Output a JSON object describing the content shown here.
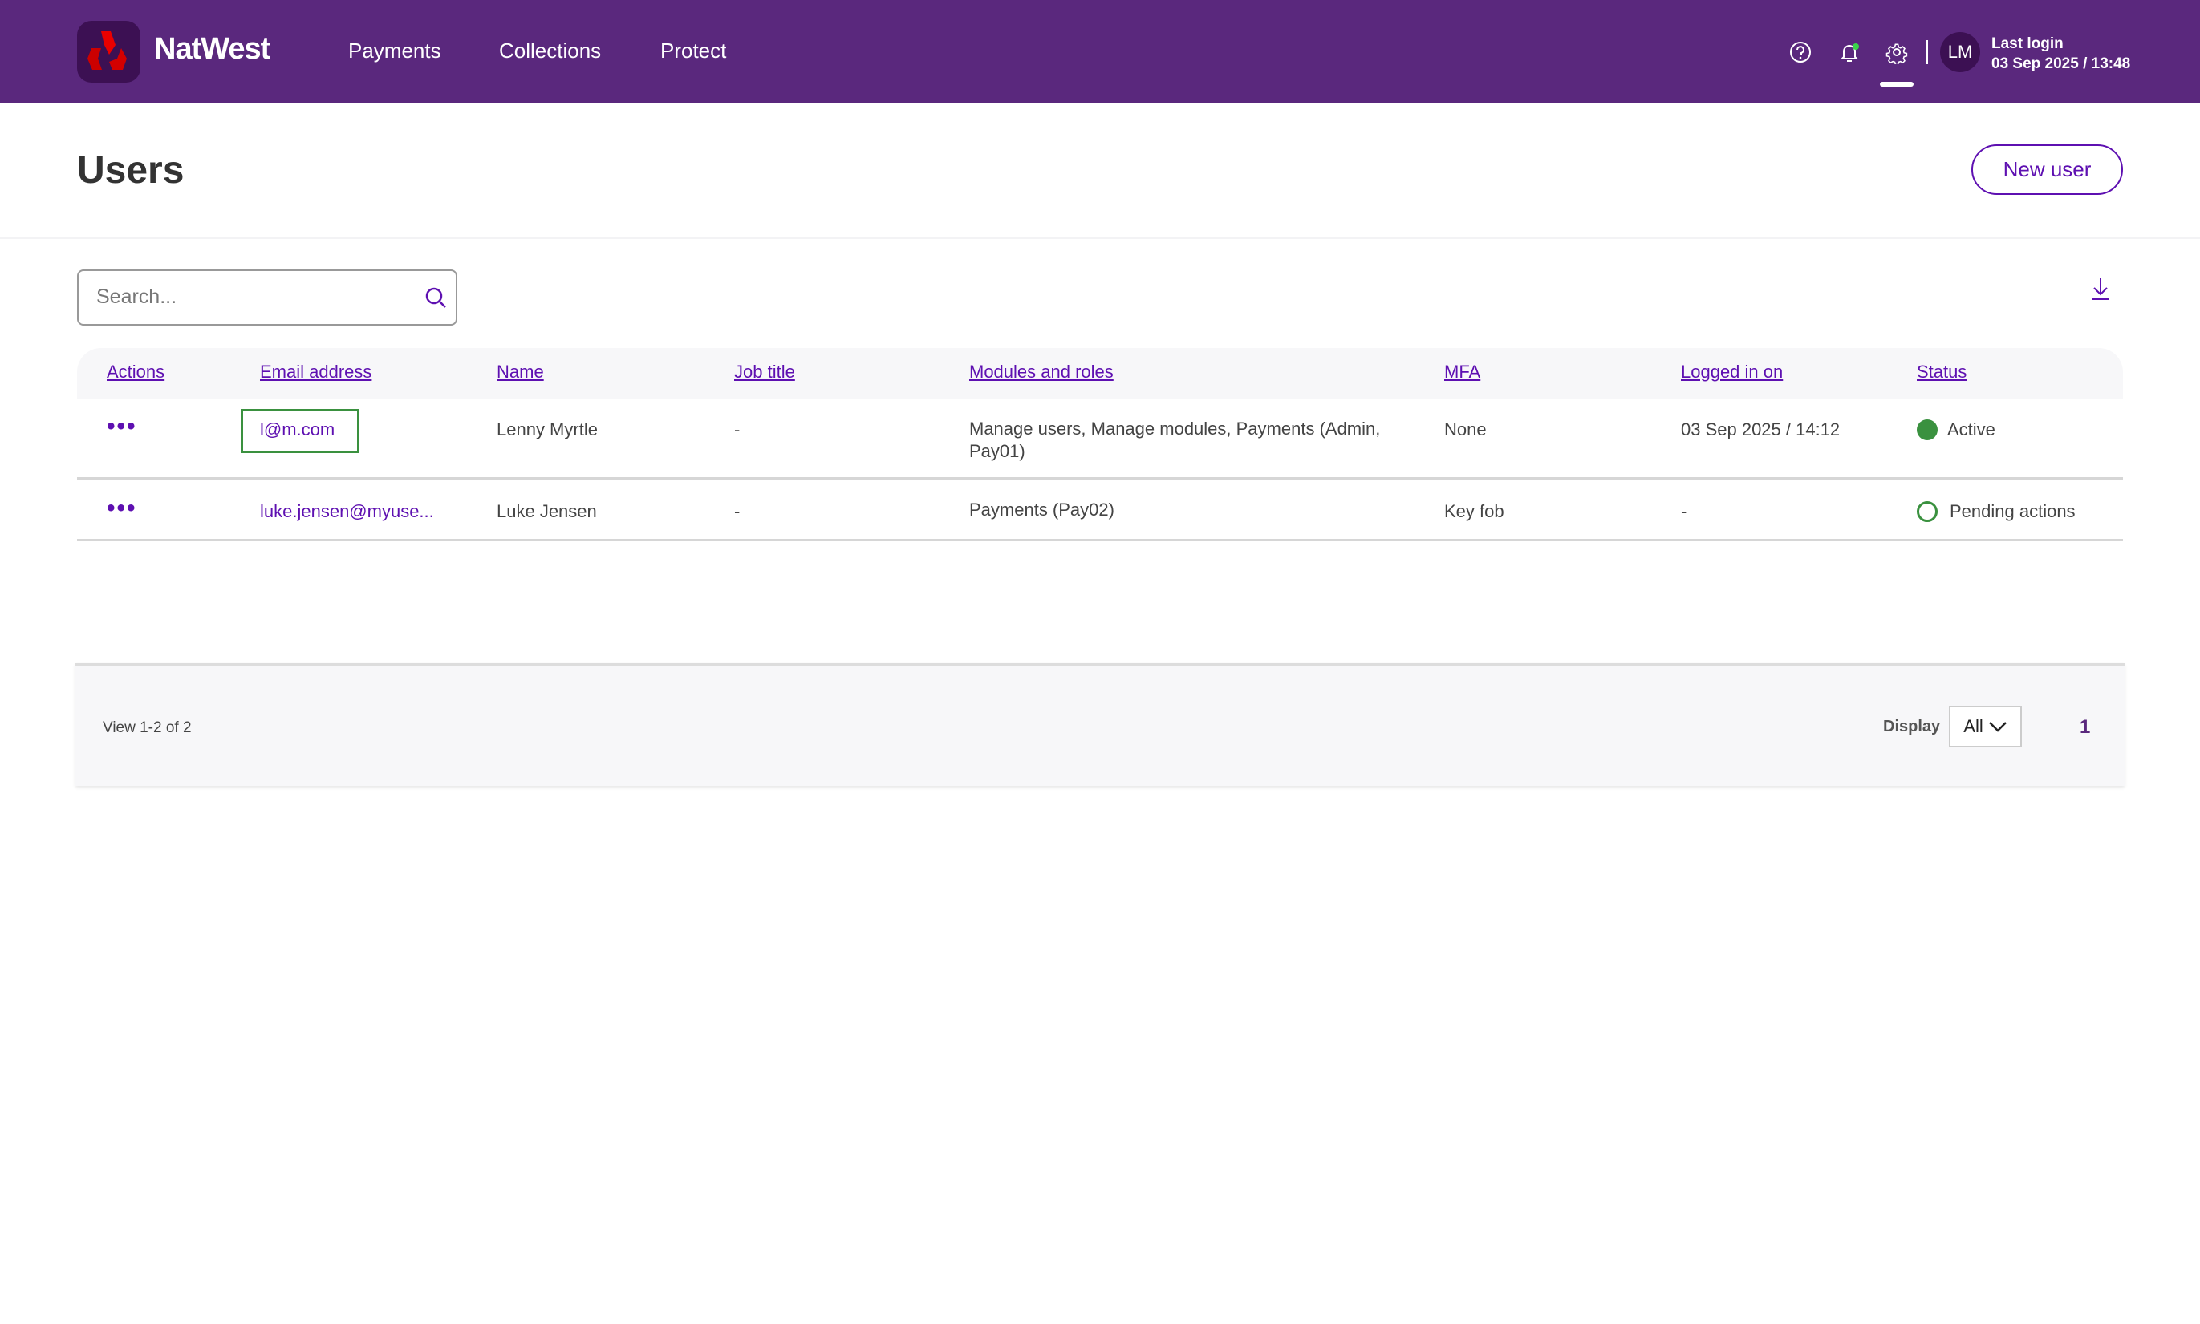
{
  "header": {
    "brand": "NatWest",
    "nav": [
      "Payments",
      "Collections",
      "Protect"
    ],
    "avatar_initials": "LM",
    "last_login_label": "Last login",
    "last_login_value": "03 Sep 2025 / 13:48",
    "notification_dot_color": "#3ad44a",
    "bg_color": "#5a287d"
  },
  "page": {
    "title": "Users",
    "new_user_label": "New user"
  },
  "search": {
    "placeholder": "Search...",
    "value": ""
  },
  "table": {
    "headers": [
      "Actions",
      "Email address",
      "Name",
      "Job title",
      "Modules and roles",
      "MFA",
      "Logged in on",
      "Status"
    ],
    "rows": [
      {
        "actions": "•••",
        "email": "l@m.com",
        "name": "Lenny Myrtle",
        "job_title": "-",
        "modules": "Manage users, Manage modules, Payments (Admin, Pay01)",
        "mfa": "None",
        "logged_in": "03 Sep 2025 / 14:12",
        "status": "Active",
        "status_icon": "filled-green-circle"
      },
      {
        "actions": "•••",
        "email": "luke.jensen@myuse...",
        "name": "Luke Jensen",
        "job_title": "-",
        "modules": "Payments (Pay02)",
        "mfa": "Key fob",
        "logged_in": "-",
        "status": "Pending actions",
        "status_icon": "outlined-green-circle"
      }
    ]
  },
  "footer": {
    "view_text": "View 1-2 of 2",
    "display_label": "Display",
    "display_value": "All",
    "page": "1"
  },
  "colors": {
    "accent": "#5e10b1",
    "status_green": "#3a913f"
  }
}
